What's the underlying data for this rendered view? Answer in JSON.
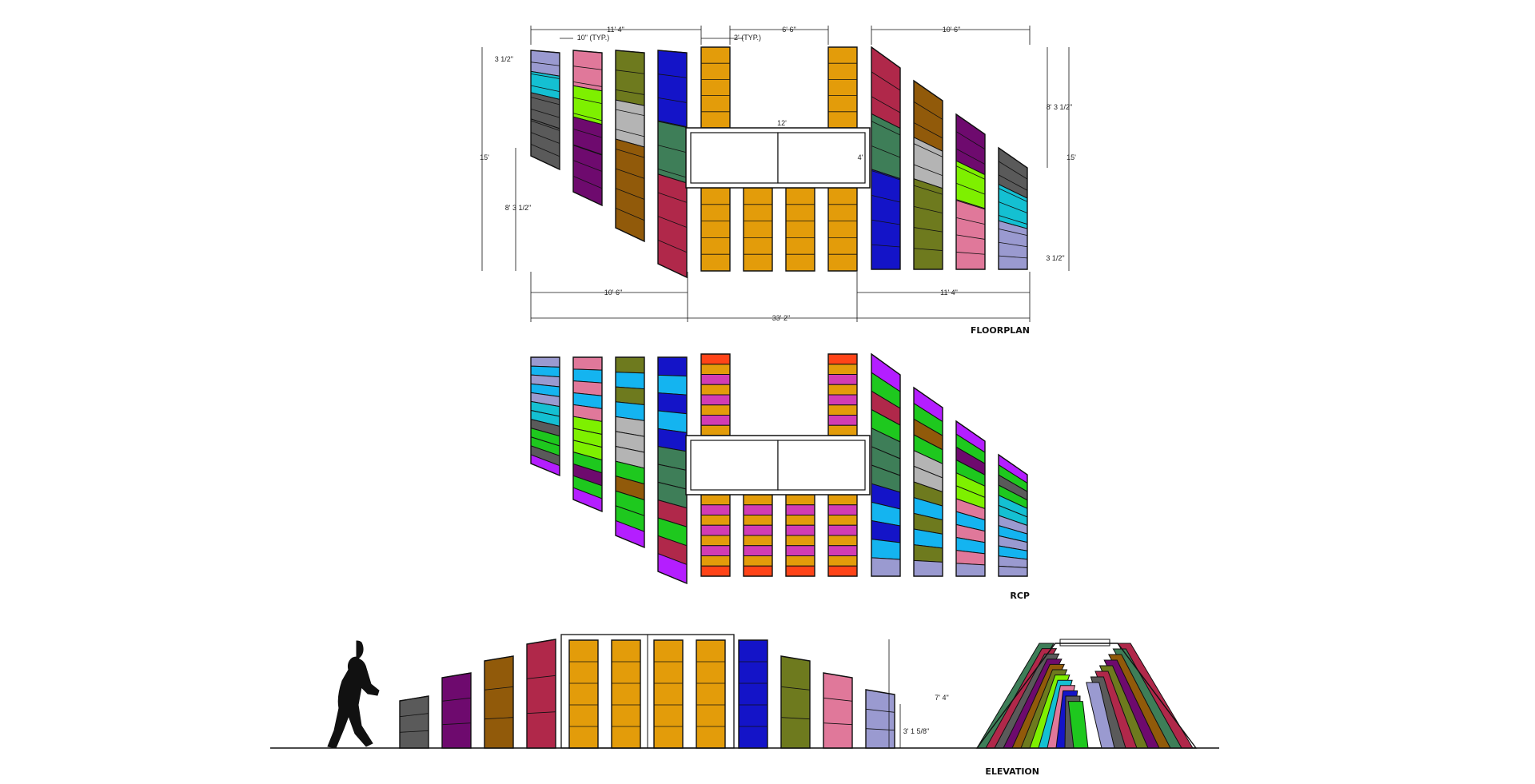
{
  "titles": {
    "floorplan": "FLOORPLAN",
    "rcp": "RCP",
    "elevation": "ELEVATION"
  },
  "dimensions": {
    "top_left_span": "11' 4\"",
    "board_width_typ": "10\" (TYP.)",
    "center_span": "6' 6\"",
    "gap_typ": "2' (TYP.)",
    "top_right_span": "10' 6\"",
    "offset_left": "3 1/2\"",
    "height_left": "15'",
    "lower_left": "8' 3 1/2\"",
    "bench_length": "12'",
    "bench_width": "4'",
    "upper_right": "8' 3 1/2\"",
    "height_right": "15'",
    "offset_right": "3 1/2\"",
    "bottom_left_span": "10' 6\"",
    "bottom_right_span": "11' 4\"",
    "overall": "33' 2\"",
    "elev_total_height": "7' 4\"",
    "elev_low_height": "3' 1 5/8\""
  },
  "colors": {
    "lavender": "#9a9ad0",
    "pink": "#e0789a",
    "olive": "#6e7a1e",
    "blue": "#1414c8",
    "orange": "#e39c0a",
    "crimson": "#b0284a",
    "brown": "#915a0a",
    "purple": "#6e0a6e",
    "gray": "#5a5a5a",
    "cyan": "#14c0d2",
    "lime": "#7ef000",
    "silver": "#b4b4b4",
    "green": "#3e7e58",
    "violet": "#b41eff",
    "sky": "#14b4f0",
    "magenta": "#d23cb4",
    "red": "#ff4418",
    "brightgreen": "#1ec81e"
  }
}
